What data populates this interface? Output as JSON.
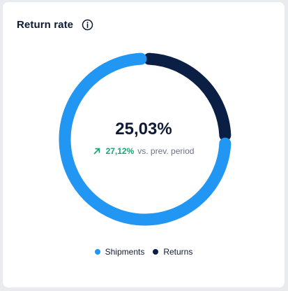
{
  "card": {
    "title": "Return rate"
  },
  "icons": {
    "info": "info-circle-icon",
    "trend": "arrow-up-right-icon"
  },
  "summary": {
    "value": "25,03%",
    "change": "27,12%",
    "change_label": "vs. prev. period"
  },
  "colors": {
    "shipments": "#2196f3",
    "returns": "#0b1f44",
    "positive": "#17a673"
  },
  "chart_data": {
    "type": "pie",
    "style": "donut",
    "title": "Return rate",
    "series": [
      {
        "name": "Shipments",
        "value": 74.97
      },
      {
        "name": "Returns",
        "value": 25.03
      }
    ],
    "legend_position": "bottom"
  },
  "legend": {
    "items": [
      {
        "label": "Shipments",
        "color": "#2196f3"
      },
      {
        "label": "Returns",
        "color": "#0b1f44"
      }
    ]
  }
}
